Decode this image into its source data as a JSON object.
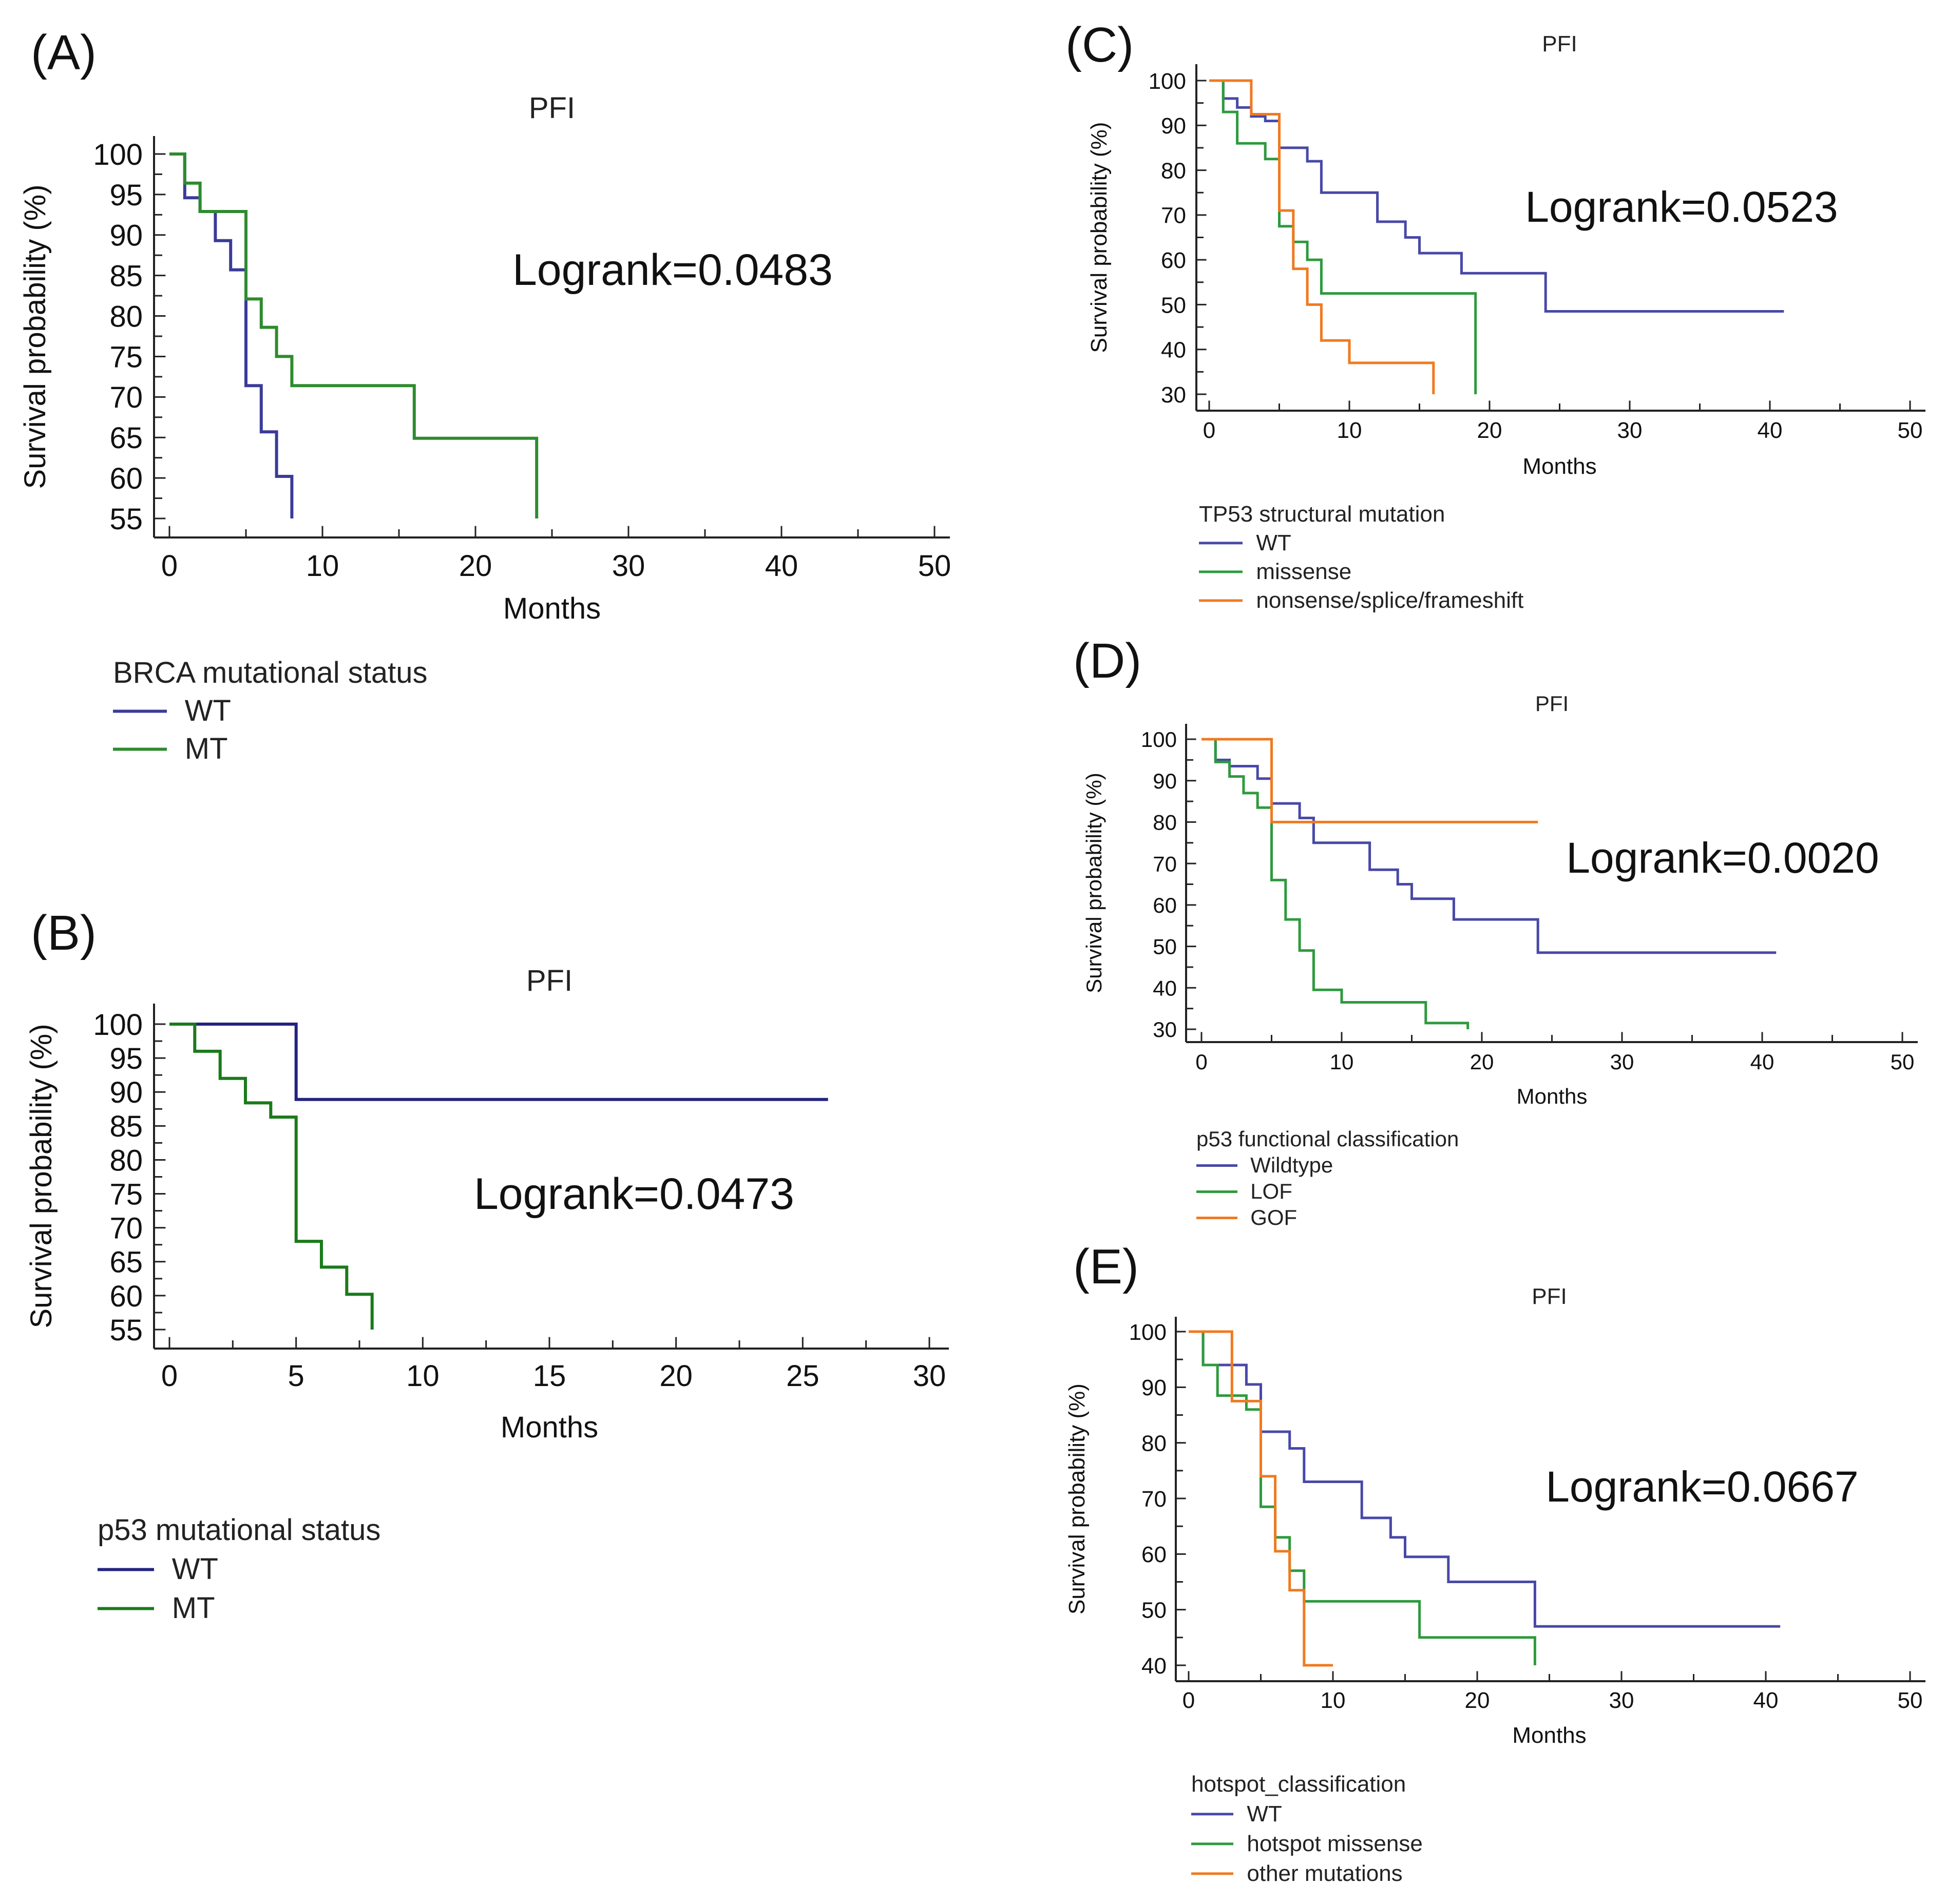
{
  "chart_data": [
    {
      "panel": "(A)",
      "type": "line",
      "step": true,
      "title": "PFI",
      "xlabel": "Months",
      "ylabel": "Survival probability (%)",
      "xlim": [
        0,
        50
      ],
      "ylim": [
        55,
        100
      ],
      "xticks": [
        0,
        10,
        20,
        30,
        40,
        50
      ],
      "yticks": [
        55,
        60,
        65,
        70,
        75,
        80,
        85,
        90,
        95,
        100
      ],
      "annotation": "Logrank=0.0483",
      "legend_title": "BRCA mutational status",
      "series": [
        {
          "name": "WT",
          "color": "#3b3b9a",
          "points": [
            [
              0,
              100
            ],
            [
              1,
              100
            ],
            [
              1,
              94.6
            ],
            [
              2,
              94.6
            ],
            [
              2,
              92.9
            ],
            [
              3,
              92.9
            ],
            [
              3,
              89.3
            ],
            [
              4,
              89.3
            ],
            [
              4,
              85.7
            ],
            [
              5,
              85.7
            ],
            [
              5,
              71.4
            ],
            [
              6,
              71.4
            ],
            [
              6,
              65.7
            ],
            [
              7,
              65.7
            ],
            [
              7,
              60.2
            ],
            [
              8,
              60.2
            ],
            [
              8,
              55
            ]
          ]
        },
        {
          "name": "MT",
          "color": "#2e8b2e",
          "points": [
            [
              0,
              100
            ],
            [
              1,
              100
            ],
            [
              1,
              96.4
            ],
            [
              2,
              96.4
            ],
            [
              2,
              92.9
            ],
            [
              5,
              92.9
            ],
            [
              5,
              82.1
            ],
            [
              6,
              82.1
            ],
            [
              6,
              78.6
            ],
            [
              7,
              78.6
            ],
            [
              7,
              75
            ],
            [
              8,
              75
            ],
            [
              8,
              71.4
            ],
            [
              16,
              71.4
            ],
            [
              16,
              64.9
            ],
            [
              24,
              64.9
            ],
            [
              24,
              55
            ]
          ]
        }
      ]
    },
    {
      "panel": "(B)",
      "type": "line",
      "step": true,
      "title": "PFI",
      "xlabel": "Months",
      "ylabel": "Survival probability (%)",
      "xlim": [
        0,
        30
      ],
      "ylim": [
        55,
        100
      ],
      "xticks": [
        0,
        5,
        10,
        15,
        20,
        25,
        30
      ],
      "yticks": [
        55,
        60,
        65,
        70,
        75,
        80,
        85,
        90,
        95,
        100
      ],
      "annotation": "Logrank=0.0473",
      "legend_title": "p53 mutational status",
      "series": [
        {
          "name": "WT",
          "color": "#232380",
          "points": [
            [
              0,
              100
            ],
            [
              5,
              100
            ],
            [
              5,
              88.9
            ],
            [
              26,
              88.9
            ]
          ]
        },
        {
          "name": "MT",
          "color": "#1a7a1a",
          "points": [
            [
              0,
              100
            ],
            [
              1,
              100
            ],
            [
              1,
              96
            ],
            [
              2,
              96
            ],
            [
              2,
              92
            ],
            [
              3,
              92
            ],
            [
              3,
              88.4
            ],
            [
              4,
              88.4
            ],
            [
              4,
              86.3
            ],
            [
              5,
              86.3
            ],
            [
              5,
              68
            ],
            [
              6,
              68
            ],
            [
              6,
              64.2
            ],
            [
              7,
              64.2
            ],
            [
              7,
              60.2
            ],
            [
              8,
              60.2
            ],
            [
              8,
              55
            ]
          ]
        }
      ]
    },
    {
      "panel": "(C)",
      "type": "line",
      "step": true,
      "title": "PFI",
      "xlabel": "Months",
      "ylabel": "Survival probability (%)",
      "xlim": [
        0,
        50
      ],
      "ylim": [
        30,
        100
      ],
      "xticks": [
        0,
        10,
        20,
        30,
        40,
        50
      ],
      "yticks": [
        30,
        40,
        50,
        60,
        70,
        80,
        90,
        100
      ],
      "annotation": "Logrank=0.0523",
      "legend_title": "TP53 structural mutation",
      "series": [
        {
          "name": "WT",
          "color": "#4848a8",
          "points": [
            [
              0,
              100
            ],
            [
              1,
              100
            ],
            [
              1,
              96
            ],
            [
              2,
              96
            ],
            [
              2,
              94
            ],
            [
              3,
              94
            ],
            [
              3,
              92
            ],
            [
              4,
              92
            ],
            [
              4,
              91
            ],
            [
              5,
              91
            ],
            [
              5,
              85
            ],
            [
              7,
              85
            ],
            [
              7,
              82
            ],
            [
              8,
              82
            ],
            [
              8,
              75
            ],
            [
              12,
              75
            ],
            [
              12,
              68.5
            ],
            [
              14,
              68.5
            ],
            [
              14,
              65
            ],
            [
              15,
              65
            ],
            [
              15,
              61.5
            ],
            [
              18,
              61.5
            ],
            [
              18,
              57
            ],
            [
              24,
              57
            ],
            [
              24,
              48.5
            ],
            [
              41,
              48.5
            ]
          ]
        },
        {
          "name": "missense",
          "color": "#2e9a3e",
          "points": [
            [
              0,
              100
            ],
            [
              1,
              100
            ],
            [
              1,
              93
            ],
            [
              2,
              93
            ],
            [
              2,
              86
            ],
            [
              4,
              86
            ],
            [
              4,
              82.5
            ],
            [
              5,
              82.5
            ],
            [
              5,
              67.5
            ],
            [
              6,
              67.5
            ],
            [
              6,
              64
            ],
            [
              7,
              64
            ],
            [
              7,
              60
            ],
            [
              8,
              60
            ],
            [
              8,
              52.5
            ],
            [
              19,
              52.5
            ],
            [
              19,
              30
            ]
          ]
        },
        {
          "name": "nonsense/splice/frameshift",
          "color": "#f07a20",
          "points": [
            [
              0,
              100
            ],
            [
              3,
              100
            ],
            [
              3,
              92.5
            ],
            [
              5,
              92.5
            ],
            [
              5,
              71
            ],
            [
              6,
              71
            ],
            [
              6,
              58
            ],
            [
              7,
              58
            ],
            [
              7,
              50
            ],
            [
              8,
              50
            ],
            [
              8,
              42
            ],
            [
              10,
              42
            ],
            [
              10,
              37
            ],
            [
              16,
              37
            ],
            [
              16,
              30
            ]
          ]
        }
      ]
    },
    {
      "panel": "(D)",
      "type": "line",
      "step": true,
      "title": "PFI",
      "xlabel": "Months",
      "ylabel": "Survival probability (%)",
      "xlim": [
        0,
        50
      ],
      "ylim": [
        30,
        100
      ],
      "xticks": [
        0,
        10,
        20,
        30,
        40,
        50
      ],
      "yticks": [
        30,
        40,
        50,
        60,
        70,
        80,
        90,
        100
      ],
      "annotation": "Logrank=0.0020",
      "legend_title": "p53 functional classification",
      "series": [
        {
          "name": "Wildtype",
          "color": "#4848a8",
          "points": [
            [
              0,
              100
            ],
            [
              1,
              100
            ],
            [
              1,
              95
            ],
            [
              2,
              95
            ],
            [
              2,
              93.5
            ],
            [
              4,
              93.5
            ],
            [
              4,
              90.5
            ],
            [
              5,
              90.5
            ],
            [
              5,
              84.5
            ],
            [
              7,
              84.5
            ],
            [
              7,
              81
            ],
            [
              8,
              81
            ],
            [
              8,
              75
            ],
            [
              12,
              75
            ],
            [
              12,
              68.5
            ],
            [
              14,
              68.5
            ],
            [
              14,
              65
            ],
            [
              15,
              65
            ],
            [
              15,
              61.5
            ],
            [
              18,
              61.5
            ],
            [
              18,
              56.5
            ],
            [
              24,
              56.5
            ],
            [
              24,
              48.5
            ],
            [
              41,
              48.5
            ]
          ]
        },
        {
          "name": "LOF",
          "color": "#2e9a3e",
          "points": [
            [
              0,
              100
            ],
            [
              1,
              100
            ],
            [
              1,
              94.5
            ],
            [
              2,
              94.5
            ],
            [
              2,
              91
            ],
            [
              3,
              91
            ],
            [
              3,
              87
            ],
            [
              4,
              87
            ],
            [
              4,
              83.5
            ],
            [
              5,
              83.5
            ],
            [
              5,
              66
            ],
            [
              6,
              66
            ],
            [
              6,
              56.5
            ],
            [
              7,
              56.5
            ],
            [
              7,
              49
            ],
            [
              8,
              49
            ],
            [
              8,
              39.5
            ],
            [
              10,
              39.5
            ],
            [
              10,
              36.5
            ],
            [
              16,
              36.5
            ],
            [
              16,
              31.5
            ],
            [
              19,
              31.5
            ],
            [
              19,
              30
            ]
          ]
        },
        {
          "name": "GOF",
          "color": "#f07a20",
          "points": [
            [
              0,
              100
            ],
            [
              5,
              100
            ],
            [
              5,
              80
            ],
            [
              24,
              80
            ]
          ]
        }
      ]
    },
    {
      "panel": "(E)",
      "type": "line",
      "step": true,
      "title": "PFI",
      "xlabel": "Months",
      "ylabel": "Survival probability (%)",
      "xlim": [
        0,
        50
      ],
      "ylim": [
        40,
        100
      ],
      "xticks": [
        0,
        10,
        20,
        30,
        40,
        50
      ],
      "yticks": [
        40,
        50,
        60,
        70,
        80,
        90,
        100
      ],
      "annotation": "Logrank=0.0667",
      "legend_title": "hotspot_classification",
      "series": [
        {
          "name": "WT",
          "color": "#4848a8",
          "points": [
            [
              0,
              100
            ],
            [
              1,
              100
            ],
            [
              1,
              94
            ],
            [
              4,
              94
            ],
            [
              4,
              90.5
            ],
            [
              5,
              90.5
            ],
            [
              5,
              82
            ],
            [
              7,
              82
            ],
            [
              7,
              79
            ],
            [
              8,
              79
            ],
            [
              8,
              73
            ],
            [
              12,
              73
            ],
            [
              12,
              66.5
            ],
            [
              14,
              66.5
            ],
            [
              14,
              63
            ],
            [
              15,
              63
            ],
            [
              15,
              59.5
            ],
            [
              18,
              59.5
            ],
            [
              18,
              55
            ],
            [
              24,
              55
            ],
            [
              24,
              47
            ],
            [
              41,
              47
            ]
          ]
        },
        {
          "name": "hotspot missense",
          "color": "#2e9a3e",
          "points": [
            [
              0,
              100
            ],
            [
              1,
              100
            ],
            [
              1,
              94
            ],
            [
              2,
              94
            ],
            [
              2,
              88.5
            ],
            [
              4,
              88.5
            ],
            [
              4,
              86
            ],
            [
              5,
              86
            ],
            [
              5,
              68.5
            ],
            [
              6,
              68.5
            ],
            [
              6,
              63
            ],
            [
              7,
              63
            ],
            [
              7,
              57
            ],
            [
              8,
              57
            ],
            [
              8,
              51.5
            ],
            [
              16,
              51.5
            ],
            [
              16,
              45
            ],
            [
              24,
              45
            ],
            [
              24,
              40
            ]
          ]
        },
        {
          "name": "other mutations",
          "color": "#f07a20",
          "points": [
            [
              0,
              100
            ],
            [
              3,
              100
            ],
            [
              3,
              87.5
            ],
            [
              5,
              87.5
            ],
            [
              5,
              74
            ],
            [
              6,
              74
            ],
            [
              6,
              60.5
            ],
            [
              7,
              60.5
            ],
            [
              7,
              53.5
            ],
            [
              8,
              53.5
            ],
            [
              8,
              40
            ],
            [
              10,
              40
            ]
          ]
        }
      ]
    }
  ]
}
